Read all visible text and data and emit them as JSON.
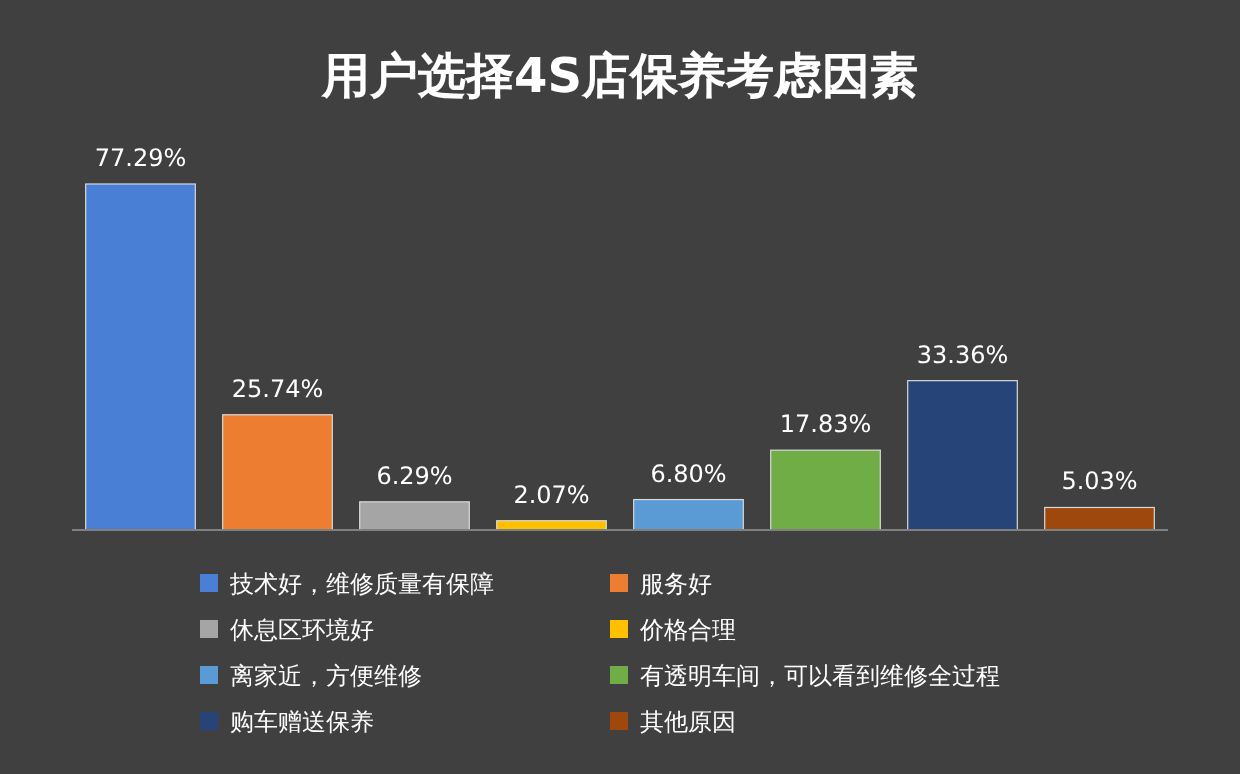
{
  "chart_data": {
    "type": "bar",
    "title": "用户选择4S店保养考虑因素",
    "categories": [
      null,
      null,
      null,
      null,
      null,
      null,
      null,
      null
    ],
    "stacked": true,
    "legend": "bottom",
    "series": [
      {
        "name": "技术好，维修质量有保障",
        "color": "#4a7fd6",
        "values": [
          77.29,
          null,
          null,
          null,
          null,
          null,
          null,
          null
        ],
        "value_labels": [
          "77.29%",
          null,
          null,
          null,
          null,
          null,
          null,
          null
        ]
      },
      {
        "name": "服务好",
        "color": "#ed7d31",
        "values": [
          null,
          25.74,
          null,
          null,
          null,
          null,
          null,
          null
        ],
        "value_labels": [
          null,
          "25.74%",
          null,
          null,
          null,
          null,
          null,
          null
        ]
      },
      {
        "name": "休息区环境好",
        "color": "#a5a5a5",
        "values": [
          null,
          null,
          6.29,
          null,
          null,
          null,
          null,
          null
        ],
        "value_labels": [
          null,
          null,
          "6.29%",
          null,
          null,
          null,
          null,
          null
        ]
      },
      {
        "name": "价格合理",
        "color": "#ffc000",
        "values": [
          null,
          null,
          null,
          2.07,
          null,
          null,
          null,
          null
        ],
        "value_labels": [
          null,
          null,
          null,
          "2.07%",
          null,
          null,
          null,
          null
        ]
      },
      {
        "name": "离家近，方便维修",
        "color": "#5b9bd5",
        "values": [
          null,
          null,
          null,
          null,
          6.8,
          null,
          null,
          null
        ],
        "value_labels": [
          null,
          null,
          null,
          null,
          "6.80%",
          null,
          null,
          null
        ]
      },
      {
        "name": "有透明车间，可以看到维修全过程",
        "color": "#70ad47",
        "values": [
          null,
          null,
          null,
          null,
          null,
          17.83,
          null,
          null
        ],
        "value_labels": [
          null,
          null,
          null,
          null,
          null,
          "17.83%",
          null,
          null
        ]
      },
      {
        "name": "购车赠送保养",
        "color": "#264478",
        "values": [
          null,
          null,
          null,
          null,
          null,
          null,
          33.36,
          null
        ],
        "value_labels": [
          null,
          null,
          null,
          null,
          null,
          null,
          "33.36%",
          null
        ]
      },
      {
        "name": "其他原因",
        "color": "#9e480e",
        "values": [
          null,
          null,
          null,
          null,
          null,
          null,
          null,
          5.03
        ],
        "value_labels": [
          null,
          null,
          null,
          null,
          null,
          null,
          null,
          "5.03%"
        ]
      }
    ]
  }
}
